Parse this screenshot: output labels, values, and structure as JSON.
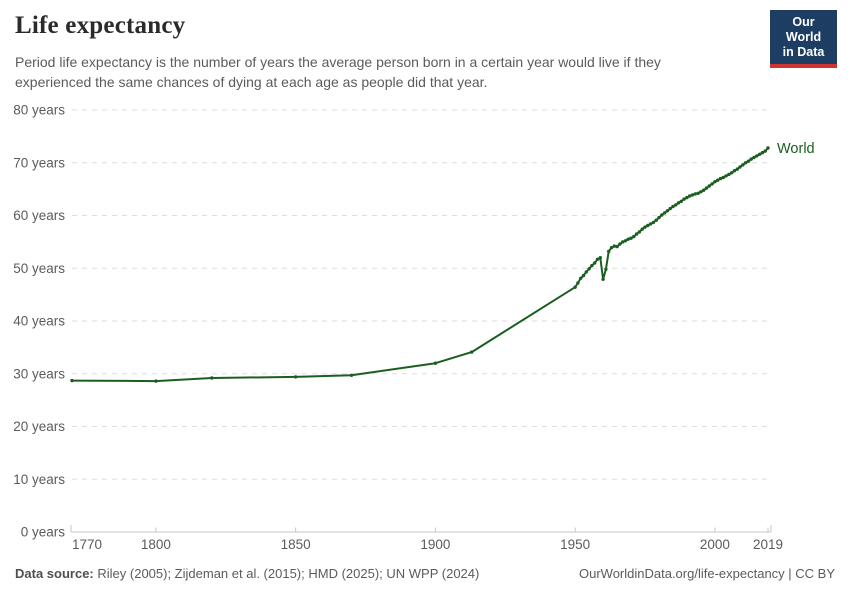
{
  "header": {
    "title": "Life expectancy",
    "subtitle_lines": [
      "Period life expectancy is the number of years the average person born in a certain year would live if they",
      "experienced the same chances of dying at each age as people did that year."
    ],
    "logo_lines": [
      "Our World",
      "in Data"
    ]
  },
  "footer": {
    "source_label": "Data source:",
    "source_text": "Riley (2005); Zijdeman et al. (2015); HMD (2025); UN WPP (2024)",
    "link_text": "OurWorldinData.org/life-expectancy | CC BY"
  },
  "colors": {
    "series_green": "#1b5e20",
    "grid": "#dedede",
    "axis": "#c6c6c6",
    "tick_text": "#5b5b5b",
    "logo_bg": "#1d3d63",
    "logo_red": "#d0342f"
  },
  "chart_data": {
    "type": "line",
    "title": "Life expectancy",
    "xlabel": "",
    "ylabel": "",
    "xlim": [
      1770,
      2019
    ],
    "ylim": [
      0,
      80
    ],
    "grid": "dashed-horizontal",
    "legend_position": "end-of-line-label",
    "x_ticks": [
      {
        "v": 1770,
        "label": "1770"
      },
      {
        "v": 1800,
        "label": "1800"
      },
      {
        "v": 1850,
        "label": "1850"
      },
      {
        "v": 1900,
        "label": "1900"
      },
      {
        "v": 1950,
        "label": "1950"
      },
      {
        "v": 2000,
        "label": "2000"
      },
      {
        "v": 2019,
        "label": "2019"
      }
    ],
    "y_ticks": [
      {
        "v": 0,
        "label": "0 years"
      },
      {
        "v": 10,
        "label": "10 years"
      },
      {
        "v": 20,
        "label": "20 years"
      },
      {
        "v": 30,
        "label": "30 years"
      },
      {
        "v": 40,
        "label": "40 years"
      },
      {
        "v": 50,
        "label": "50 years"
      },
      {
        "v": 60,
        "label": "60 years"
      },
      {
        "v": 70,
        "label": "70 years"
      },
      {
        "v": 80,
        "label": "80 years"
      }
    ],
    "series": [
      {
        "name": "World",
        "color": "#1b5e20",
        "points": [
          [
            1770,
            28.7
          ],
          [
            1800,
            28.6
          ],
          [
            1820,
            29.2
          ],
          [
            1850,
            29.4
          ],
          [
            1870,
            29.7
          ],
          [
            1900,
            32.0
          ],
          [
            1913,
            34.1
          ],
          [
            1950,
            46.4
          ],
          [
            1951,
            47.2
          ],
          [
            1952,
            48.1
          ],
          [
            1953,
            48.6
          ],
          [
            1954,
            49.3
          ],
          [
            1955,
            49.9
          ],
          [
            1956,
            50.5
          ],
          [
            1957,
            51.0
          ],
          [
            1958,
            51.7
          ],
          [
            1959,
            52.0
          ],
          [
            1960,
            47.9
          ],
          [
            1961,
            49.8
          ],
          [
            1962,
            53.2
          ],
          [
            1963,
            53.9
          ],
          [
            1964,
            54.2
          ],
          [
            1965,
            54.1
          ],
          [
            1966,
            54.6
          ],
          [
            1967,
            55.0
          ],
          [
            1968,
            55.2
          ],
          [
            1969,
            55.5
          ],
          [
            1970,
            55.7
          ],
          [
            1971,
            56.0
          ],
          [
            1972,
            56.5
          ],
          [
            1973,
            56.9
          ],
          [
            1974,
            57.4
          ],
          [
            1975,
            57.8
          ],
          [
            1976,
            58.1
          ],
          [
            1977,
            58.4
          ],
          [
            1978,
            58.7
          ],
          [
            1979,
            59.1
          ],
          [
            1980,
            59.6
          ],
          [
            1981,
            60.1
          ],
          [
            1982,
            60.5
          ],
          [
            1983,
            60.9
          ],
          [
            1984,
            61.3
          ],
          [
            1985,
            61.7
          ],
          [
            1986,
            62.0
          ],
          [
            1987,
            62.4
          ],
          [
            1988,
            62.7
          ],
          [
            1989,
            63.1
          ],
          [
            1990,
            63.4
          ],
          [
            1991,
            63.7
          ],
          [
            1992,
            63.9
          ],
          [
            1993,
            64.1
          ],
          [
            1994,
            64.2
          ],
          [
            1995,
            64.5
          ],
          [
            1996,
            64.8
          ],
          [
            1997,
            65.2
          ],
          [
            1998,
            65.6
          ],
          [
            1999,
            66.0
          ],
          [
            2000,
            66.4
          ],
          [
            2001,
            66.7
          ],
          [
            2002,
            67.0
          ],
          [
            2003,
            67.2
          ],
          [
            2004,
            67.5
          ],
          [
            2005,
            67.8
          ],
          [
            2006,
            68.1
          ],
          [
            2007,
            68.5
          ],
          [
            2008,
            68.8
          ],
          [
            2009,
            69.2
          ],
          [
            2010,
            69.6
          ],
          [
            2011,
            70.0
          ],
          [
            2012,
            70.3
          ],
          [
            2013,
            70.7
          ],
          [
            2014,
            71.0
          ],
          [
            2015,
            71.3
          ],
          [
            2016,
            71.6
          ],
          [
            2017,
            71.9
          ],
          [
            2018,
            72.2
          ],
          [
            2019,
            72.8
          ]
        ]
      }
    ]
  }
}
